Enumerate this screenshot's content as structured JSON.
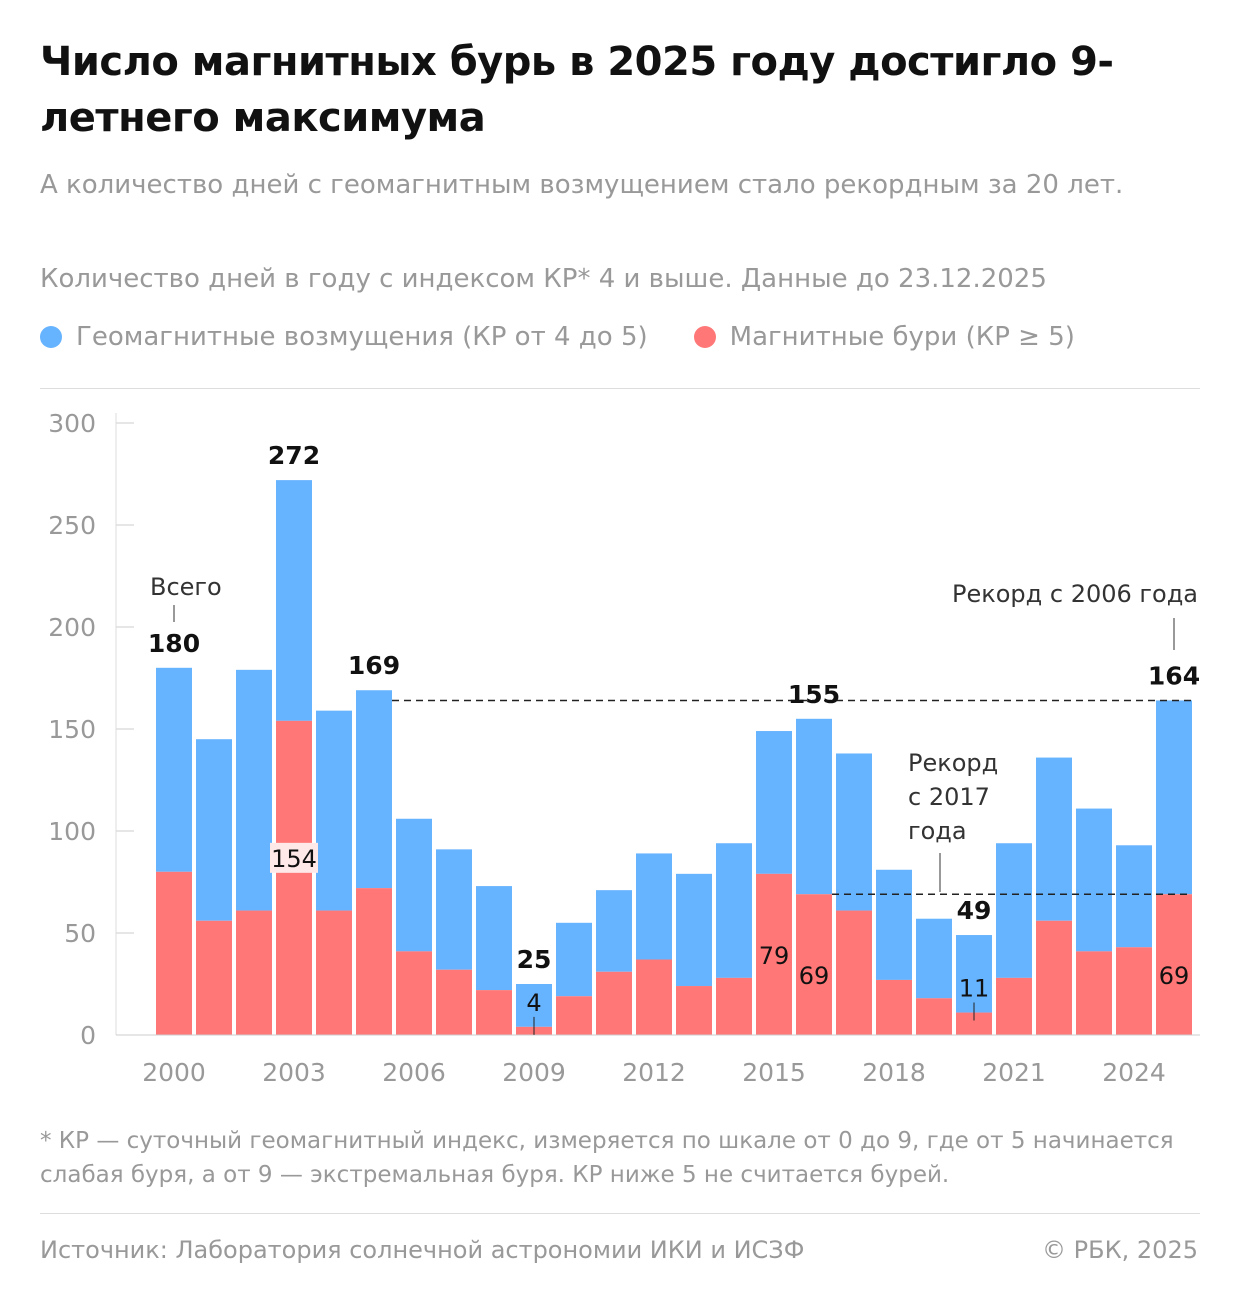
{
  "title": "Число магнитных бурь в 2025 году достигло 9-летнего максимума",
  "subtitle": "А количество дней с геомагнитным возмущением стало рекордным за 20 лет.",
  "note": "Количество дней в году с индексом КР* 4 и выше. Данные до 23.12.2025",
  "legend": [
    {
      "label": "Геомагнитные возмущения (КР от 4 до 5)",
      "color": "#66b3ff"
    },
    {
      "label": "Магнитные бури (КР ≥ 5)",
      "color": "#ff7777"
    }
  ],
  "footnote": "* КР — суточный геомагнитный индекс, измеряется по шкале от 0 до 9, где от 5 начинается слабая буря, а от 9 — экстремальная буря. КР ниже 5 не считается бурей.",
  "source": "Источник: Лаборатория солнечной астрономии ИКИ и ИСЗФ",
  "copyright": "© РБК, 2025",
  "chart_data": {
    "type": "bar",
    "stacked": true,
    "categories": [
      2000,
      2001,
      2002,
      2003,
      2004,
      2005,
      2006,
      2007,
      2008,
      2009,
      2010,
      2011,
      2012,
      2013,
      2014,
      2015,
      2016,
      2017,
      2018,
      2019,
      2020,
      2021,
      2022,
      2023,
      2024,
      2025
    ],
    "total": [
      180,
      145,
      179,
      272,
      159,
      169,
      106,
      91,
      73,
      25,
      55,
      71,
      89,
      79,
      94,
      149,
      155,
      138,
      81,
      57,
      49,
      94,
      136,
      111,
      93,
      164
    ],
    "series": [
      {
        "name": "Магнитные бури (КР ≥ 5)",
        "color": "#ff7777",
        "values": [
          80,
          56,
          61,
          154,
          61,
          72,
          41,
          32,
          22,
          4,
          19,
          31,
          37,
          24,
          28,
          79,
          69,
          61,
          27,
          18,
          11,
          28,
          56,
          41,
          43,
          69
        ]
      },
      {
        "name": "Геомагнитные возмущения (КР от 4 до 5)",
        "color": "#66b3ff",
        "values": [
          100,
          89,
          118,
          118,
          98,
          97,
          65,
          59,
          51,
          21,
          36,
          40,
          52,
          55,
          66,
          70,
          86,
          77,
          54,
          39,
          38,
          66,
          80,
          70,
          50,
          95
        ]
      }
    ],
    "ylim": [
      0,
      300
    ],
    "yticks": [
      "0",
      "50",
      "100",
      "150",
      "200",
      "250",
      "300"
    ],
    "xticks": [
      "2000",
      "2003",
      "2006",
      "2009",
      "2012",
      "2015",
      "2018",
      "2021",
      "2024"
    ],
    "grid": false,
    "total_labels": [
      {
        "year": 2000,
        "text": "180"
      },
      {
        "year": 2003,
        "text": "272"
      },
      {
        "year": 2005,
        "text": "169"
      },
      {
        "year": 2009,
        "text": "25"
      },
      {
        "year": 2016,
        "text": "155"
      },
      {
        "year": 2020,
        "text": "49"
      },
      {
        "year": 2025,
        "text": "164"
      }
    ],
    "storm_labels": [
      {
        "year": 2003,
        "text": "154"
      },
      {
        "year": 2009,
        "text": "4"
      },
      {
        "year": 2015,
        "text": "79"
      },
      {
        "year": 2016,
        "text": "69"
      },
      {
        "year": 2020,
        "text": "11"
      },
      {
        "year": 2025,
        "text": "69"
      }
    ],
    "annotations": {
      "all": "Всего",
      "record2006": "Рекорд с 2006 года",
      "record2017": [
        "Рекорд",
        "с 2017",
        "года"
      ]
    }
  }
}
